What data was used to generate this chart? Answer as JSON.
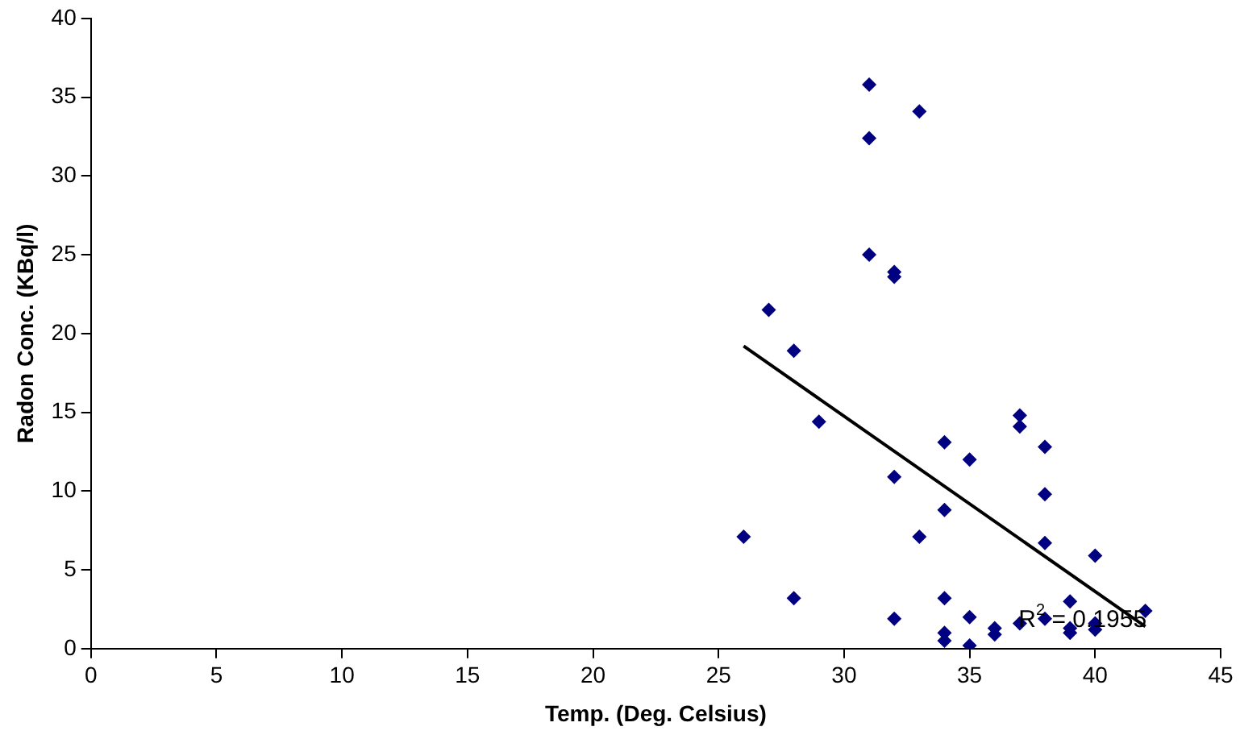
{
  "chart_data": {
    "type": "scatter",
    "xlabel": "Temp. (Deg. Celsius)",
    "ylabel": "Radon Conc. (KBq/l)",
    "xlim": [
      0,
      45
    ],
    "xticks": [
      0,
      5,
      10,
      15,
      20,
      25,
      30,
      35,
      40,
      45
    ],
    "ylim": [
      0,
      40
    ],
    "yticks": [
      0,
      5,
      10,
      15,
      20,
      25,
      30,
      35,
      40
    ],
    "grid": false,
    "legend": false,
    "marker": "diamond",
    "series": [
      {
        "color": "#000080",
        "x": [
          26,
          27,
          28,
          28,
          29,
          31,
          31,
          31,
          32,
          32,
          32,
          32,
          33,
          33,
          34,
          34,
          34,
          34,
          34,
          35,
          35,
          35,
          36,
          36,
          37,
          37,
          37,
          38,
          38,
          38,
          38,
          39,
          39,
          39,
          40,
          40,
          40,
          42
        ],
        "values": [
          7.1,
          21.5,
          18.9,
          3.2,
          14.4,
          35.8,
          32.4,
          25,
          23.9,
          23.6,
          10.9,
          1.9,
          34.1,
          7.1,
          13.1,
          8.8,
          3.2,
          1.0,
          0.5,
          12,
          2,
          0.2,
          1.3,
          0.9,
          14.8,
          14.1,
          1.6,
          12.8,
          9.8,
          6.7,
          1.9,
          3.0,
          1.0,
          1.3,
          5.9,
          1.6,
          1.2,
          2.4
        ]
      },
      {
        "type": "line",
        "color": "#000000",
        "marker": "none",
        "x": [
          26,
          42
        ],
        "values": [
          19.2,
          1.4
        ]
      }
    ],
    "annotations": [
      {
        "text": "R$^{2}$ = 0.1955",
        "x": 39.5,
        "y": 1.2
      }
    ]
  }
}
